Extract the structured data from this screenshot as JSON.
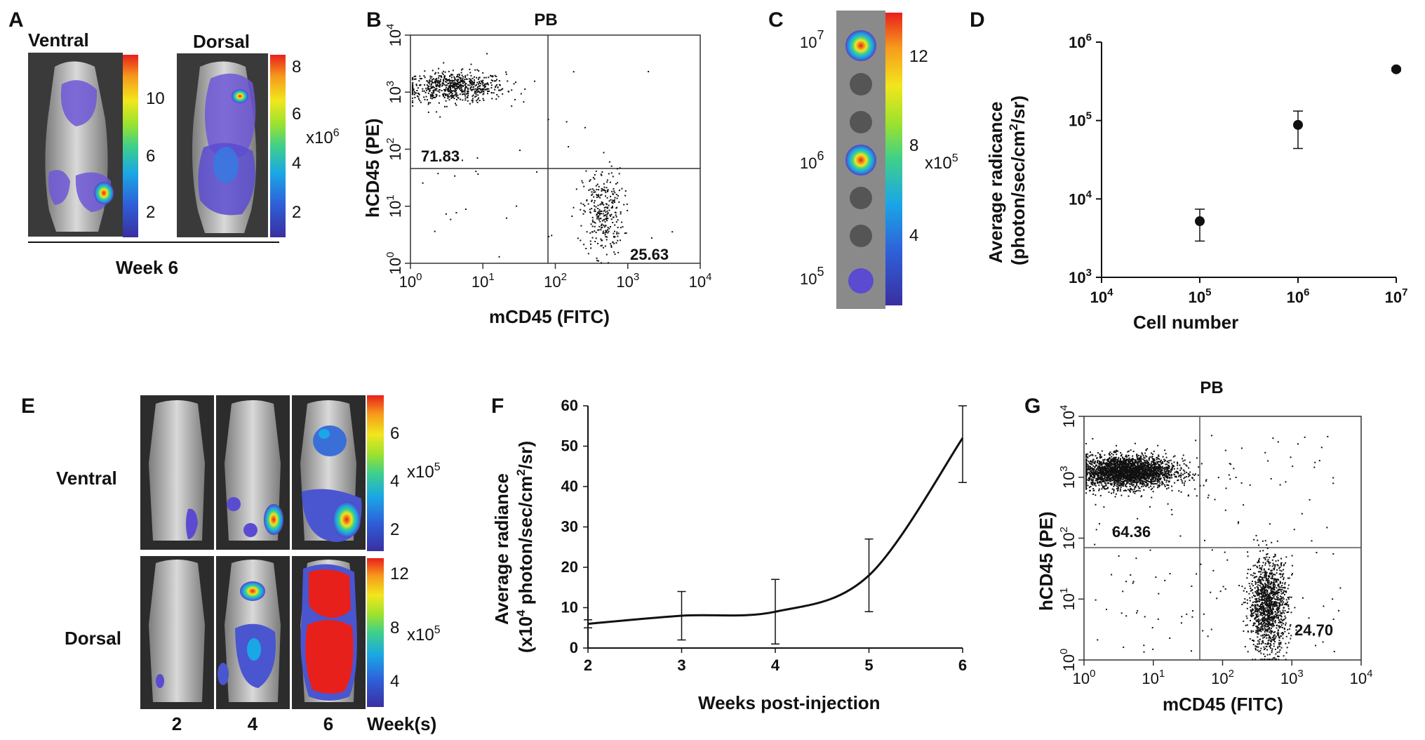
{
  "panels": {
    "A": {
      "letter": "A",
      "ventral": "Ventral",
      "dorsal": "Dorsal",
      "week": "Week 6",
      "cb1_ticks": [
        "10",
        "6",
        "2"
      ],
      "cb2_ticks": [
        "8",
        "6",
        "4",
        "2"
      ],
      "cb_scale": "x10",
      "cb_exp": "6"
    },
    "B": {
      "letter": "B",
      "title": "PB",
      "ylabel": "hCD45 (PE)",
      "xlabel": "mCD45 (FITC)",
      "q_upper_left": "71.83",
      "q_lower_right": "25.63"
    },
    "C": {
      "letter": "C",
      "row_labels": [
        {
          "base": "10",
          "exp": "7"
        },
        {
          "base": "10",
          "exp": "6"
        },
        {
          "base": "10",
          "exp": "5"
        }
      ],
      "cb_ticks": [
        "12",
        "8",
        "4"
      ],
      "cb_scale": "x10",
      "cb_exp": "5"
    },
    "D": {
      "letter": "D",
      "ylabel_1": "Average radicance",
      "ylabel_2": "(photon/sec/cm",
      "ylabel_2_sup": "2",
      "ylabel_2_end": "/sr)",
      "xlabel": "Cell number"
    },
    "E": {
      "letter": "E",
      "ventral": "Ventral",
      "dorsal": "Dorsal",
      "weeks": [
        "2",
        "4",
        "6"
      ],
      "weeks_label": "Week(s)",
      "cb1_ticks": [
        "6",
        "4",
        "2"
      ],
      "cb2_ticks": [
        "12",
        "8",
        "4"
      ],
      "cb_scale": "x10",
      "cb_exp": "5"
    },
    "F": {
      "letter": "F",
      "ylabel_1": "Average radiance",
      "ylabel_2a": "(x10",
      "ylabel_2_sup": "4",
      "ylabel_2b": " photon/sec/cm",
      "ylabel_2_sup2": "2",
      "ylabel_2c": "/sr)",
      "xlabel": "Weeks post-injection"
    },
    "G": {
      "letter": "G",
      "title": "PB",
      "ylabel": "hCD45 (PE)",
      "xlabel": "mCD45 (FITC)",
      "q_upper_left": "64.36",
      "q_lower_right": "24.70"
    }
  },
  "chart_data": [
    {
      "id": "D",
      "type": "scatter",
      "title": "",
      "xlabel": "Cell number",
      "ylabel": "Average radicance (photon/sec/cm2/sr)",
      "xscale": "log",
      "yscale": "log",
      "xlim": [
        10000,
        10000000
      ],
      "ylim": [
        1000,
        1000000
      ],
      "x": [
        100000,
        1000000,
        10000000
      ],
      "y": [
        5200,
        88000,
        450000
      ],
      "err_low": [
        2900,
        44000,
        430000
      ],
      "err_high": [
        7400,
        132000,
        470000
      ],
      "x_ticks": [
        {
          "base": "10",
          "exp": "4"
        },
        {
          "base": "10",
          "exp": "5"
        },
        {
          "base": "10",
          "exp": "6"
        },
        {
          "base": "10",
          "exp": "7"
        }
      ],
      "y_ticks": [
        {
          "base": "10",
          "exp": "3"
        },
        {
          "base": "10",
          "exp": "4"
        },
        {
          "base": "10",
          "exp": "5"
        },
        {
          "base": "10",
          "exp": "6"
        }
      ]
    },
    {
      "id": "F",
      "type": "line",
      "title": "",
      "xlabel": "Weeks post-injection",
      "ylabel": "Average radiance (x10^4 photon/sec/cm2/sr)",
      "xlim": [
        2,
        6
      ],
      "ylim": [
        0,
        60
      ],
      "x": [
        2,
        3,
        4,
        5,
        6
      ],
      "y": [
        6,
        8,
        9,
        18,
        52
      ],
      "err_low": [
        5,
        2,
        1,
        9,
        41
      ],
      "err_high": [
        7,
        14,
        17,
        27,
        60
      ],
      "x_ticks": [
        "2",
        "3",
        "4",
        "5",
        "6"
      ],
      "y_ticks": [
        "0",
        "10",
        "20",
        "30",
        "40",
        "50",
        "60"
      ]
    },
    {
      "id": "B",
      "type": "scatter",
      "title": "PB",
      "xlabel": "mCD45 (FITC)",
      "ylabel": "hCD45 (PE)",
      "xscale": "log",
      "yscale": "log",
      "xlim": [
        1,
        10000
      ],
      "ylim": [
        1,
        10000
      ],
      "quadrants": {
        "upper_left": 71.83,
        "lower_right": 25.63
      },
      "x_ticks": [
        {
          "base": "10",
          "exp": "0"
        },
        {
          "base": "10",
          "exp": "1"
        },
        {
          "base": "10",
          "exp": "2"
        },
        {
          "base": "10",
          "exp": "3"
        },
        {
          "base": "10",
          "exp": "4"
        }
      ],
      "y_ticks": [
        {
          "base": "10",
          "exp": "0"
        },
        {
          "base": "10",
          "exp": "1"
        },
        {
          "base": "10",
          "exp": "2"
        },
        {
          "base": "10",
          "exp": "3"
        },
        {
          "base": "10",
          "exp": "4"
        }
      ]
    },
    {
      "id": "G",
      "type": "scatter",
      "title": "PB",
      "xlabel": "mCD45 (FITC)",
      "ylabel": "hCD45 (PE)",
      "xscale": "log",
      "yscale": "log",
      "xlim": [
        1,
        10000
      ],
      "ylim": [
        1,
        10000
      ],
      "quadrants": {
        "upper_left": 64.36,
        "lower_right": 24.7
      },
      "x_ticks": [
        {
          "base": "10",
          "exp": "0"
        },
        {
          "base": "10",
          "exp": "1"
        },
        {
          "base": "10",
          "exp": "2"
        },
        {
          "base": "10",
          "exp": "3"
        },
        {
          "base": "10",
          "exp": "4"
        }
      ],
      "y_ticks": [
        {
          "base": "10",
          "exp": "0"
        },
        {
          "base": "10",
          "exp": "1"
        },
        {
          "base": "10",
          "exp": "2"
        },
        {
          "base": "10",
          "exp": "3"
        },
        {
          "base": "10",
          "exp": "4"
        }
      ]
    }
  ]
}
